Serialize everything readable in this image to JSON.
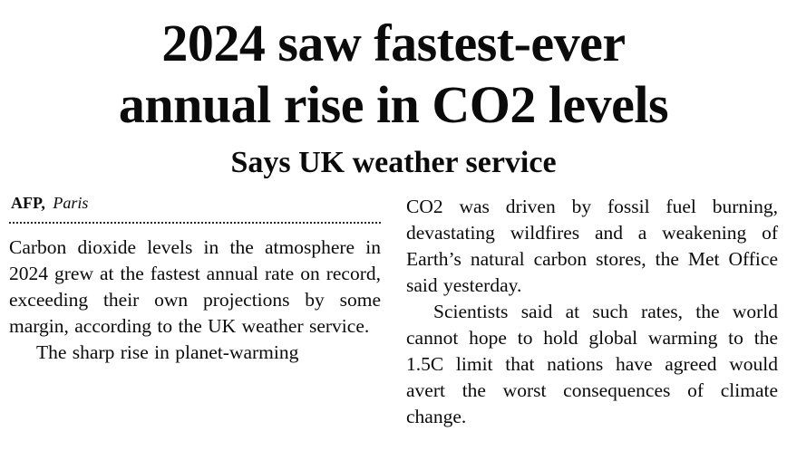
{
  "article": {
    "headline_line1": "2024 saw fastest-ever",
    "headline_line2": "annual rise in CO2 levels",
    "subheadline": "Says UK weather service",
    "byline": {
      "agency": "AFP,",
      "location": "Paris"
    },
    "left_column_paragraphs": [
      "Carbon dioxide levels in the atmosphere in 2024 grew at the fastest annual rate on record, exceeding their own projections by some margin, according to the UK weather service.",
      "The sharp rise in planet-warming"
    ],
    "right_column_paragraphs": [
      "CO2 was driven by fossil fuel burning, devastating wildfires and a weakening of Earth’s natural carbon stores, the Met Office said yesterday.",
      "Scientists said at such rates, the world cannot hope to hold global warming to the 1.5C limit that nations have agreed would avert the worst consequences of climate change."
    ]
  }
}
